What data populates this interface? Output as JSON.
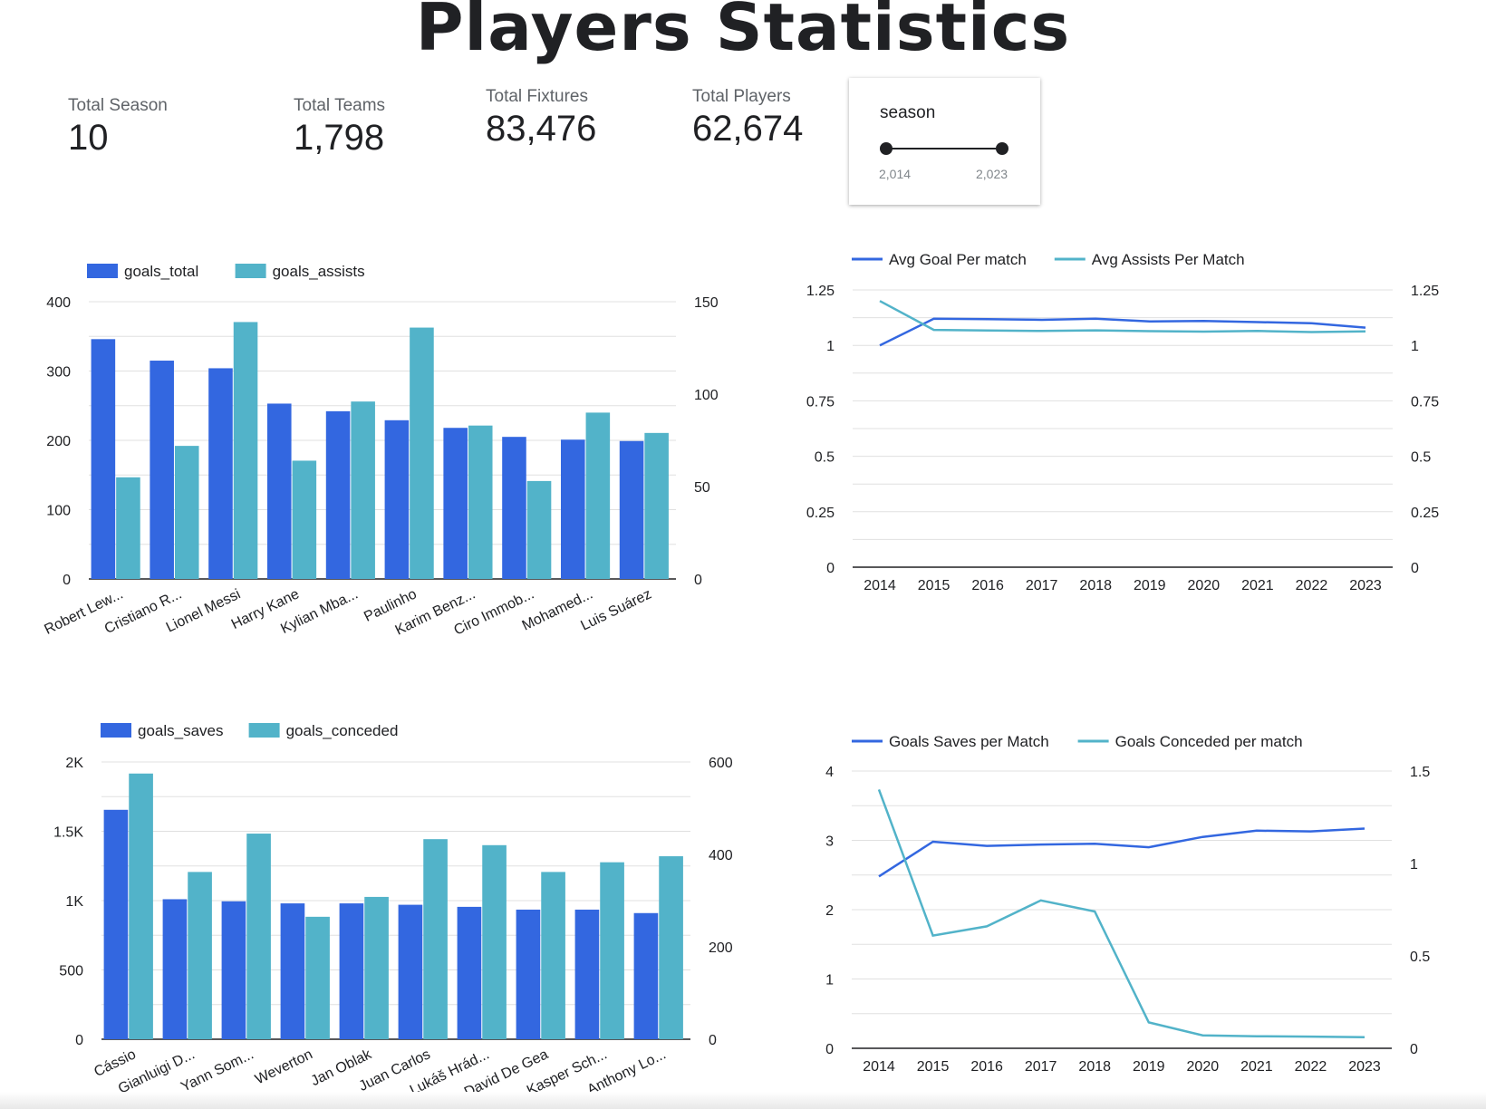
{
  "title": "Players Statistics",
  "kpis": [
    {
      "label": "Total Season",
      "value": "10"
    },
    {
      "label": "Total Teams",
      "value": "1,798"
    },
    {
      "label": "Total Fixtures",
      "value": "83,476"
    },
    {
      "label": "Total Players",
      "value": "62,674"
    }
  ],
  "season_filter": {
    "label": "season",
    "min_label": "2,014",
    "max_label": "2,023"
  },
  "colors": {
    "primary": "#3367e0",
    "secondary": "#52b3c9",
    "grid": "#e0e0e0",
    "axis": "#202124"
  },
  "chart_data": [
    {
      "type": "bar",
      "categories": [
        "Robert Lew...",
        "Cristiano R...",
        "Lionel Messi",
        "Harry Kane",
        "Kylian Mba...",
        "Paulinho",
        "Karim Benz...",
        "Ciro Immob...",
        "Mohamed...",
        "Luis Suárez"
      ],
      "series": [
        {
          "name": "goals_total",
          "axis": "left",
          "values": [
            346,
            315,
            304,
            253,
            242,
            229,
            218,
            205,
            201,
            199
          ]
        },
        {
          "name": "goals_assists",
          "axis": "right",
          "values": [
            55,
            72,
            139,
            64,
            96,
            136,
            83,
            53,
            90,
            79
          ]
        }
      ],
      "y_left": {
        "range": [
          0,
          400
        ],
        "ticks": [
          "0",
          "100",
          "200",
          "300",
          "400"
        ]
      },
      "y_right": {
        "range": [
          0,
          150
        ],
        "ticks": [
          "0",
          "50",
          "100",
          "150"
        ]
      },
      "legend": "top-left",
      "grid": true
    },
    {
      "type": "line",
      "x": [
        "2014",
        "2015",
        "2016",
        "2017",
        "2018",
        "2019",
        "2020",
        "2021",
        "2022",
        "2023"
      ],
      "series": [
        {
          "name": "Avg Goal Per match",
          "axis": "left",
          "values": [
            1.0,
            1.12,
            1.118,
            1.115,
            1.12,
            1.108,
            1.11,
            1.105,
            1.1,
            1.08
          ]
        },
        {
          "name": "Avg Assists Per Match",
          "axis": "right",
          "values": [
            1.2,
            1.07,
            1.067,
            1.065,
            1.068,
            1.064,
            1.062,
            1.065,
            1.06,
            1.063
          ]
        }
      ],
      "y_left": {
        "range": [
          0,
          1.25
        ],
        "ticks": [
          "0",
          "0.25",
          "0.5",
          "0.75",
          "1",
          "1.25"
        ]
      },
      "y_right": {
        "range": [
          0,
          1.25
        ],
        "ticks": [
          "0",
          "0.25",
          "0.5",
          "0.75",
          "1",
          "1.25"
        ]
      },
      "legend": "top-left",
      "grid": true
    },
    {
      "type": "bar",
      "categories": [
        "Cássio",
        "Gianluigi D...",
        "Yann Som...",
        "Weverton",
        "Jan Oblak",
        "Juan Carlos",
        "Lukáš Hrád...",
        "David De Gea",
        "Kasper Sch...",
        "Anthony Lo..."
      ],
      "series": [
        {
          "name": "goals_saves",
          "axis": "left",
          "values": [
            1655,
            1010,
            995,
            980,
            980,
            970,
            955,
            935,
            935,
            910
          ]
        },
        {
          "name": "goals_conceded",
          "axis": "right",
          "values": [
            575,
            362,
            445,
            265,
            308,
            433,
            420,
            362,
            383,
            396
          ]
        }
      ],
      "y_left": {
        "range": [
          0,
          2000
        ],
        "ticks": [
          "0",
          "500",
          "1K",
          "1.5K",
          "2K"
        ]
      },
      "y_right": {
        "range": [
          0,
          600
        ],
        "ticks": [
          "0",
          "200",
          "400",
          "600"
        ]
      },
      "legend": "top-left",
      "grid": true
    },
    {
      "type": "line",
      "x": [
        "2014",
        "2015",
        "2016",
        "2017",
        "2018",
        "2019",
        "2020",
        "2021",
        "2022",
        "2023"
      ],
      "series": [
        {
          "name": "Goals Saves per Match",
          "axis": "left",
          "values": [
            2.48,
            2.98,
            2.92,
            2.94,
            2.95,
            2.9,
            3.05,
            3.14,
            3.13,
            3.17
          ]
        },
        {
          "name": "Goals Conceded per match",
          "axis": "right",
          "values": [
            1.4,
            0.61,
            0.66,
            0.8,
            0.74,
            0.14,
            0.07,
            0.065,
            0.063,
            0.06
          ]
        }
      ],
      "y_left": {
        "range": [
          0,
          4
        ],
        "ticks": [
          "0",
          "1",
          "2",
          "3",
          "4"
        ]
      },
      "y_right": {
        "range": [
          0,
          1.5
        ],
        "ticks": [
          "0",
          "0.5",
          "1",
          "1.5"
        ]
      },
      "legend": "top-left",
      "grid": true
    }
  ]
}
